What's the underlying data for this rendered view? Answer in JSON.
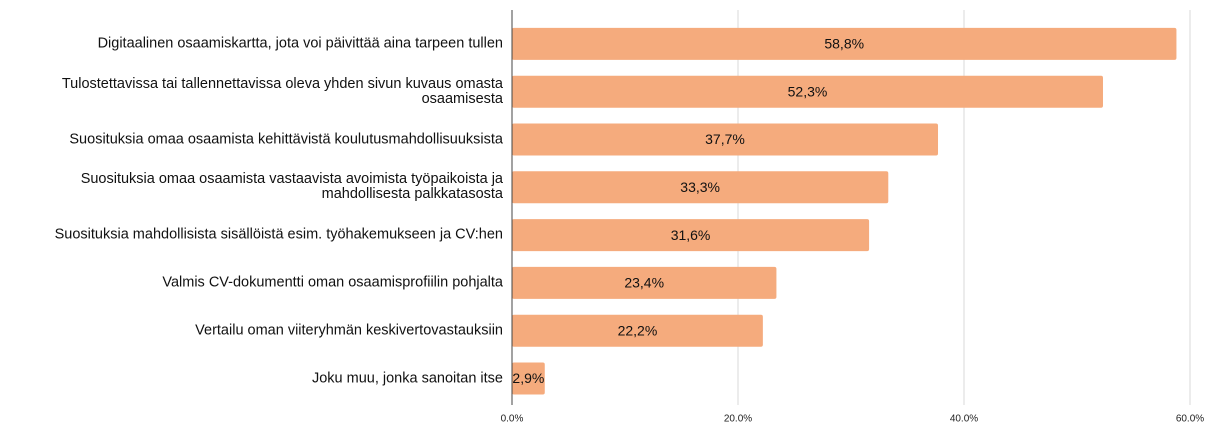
{
  "chart_data": {
    "type": "bar",
    "orientation": "horizontal",
    "categories": [
      "Digitaalinen osaamiskartta, jota voi päivittää aina tarpeen tullen",
      "Tulostettavissa tai tallennettavissa oleva yhden sivun kuvaus omasta osaamisesta",
      "Suosituksia omaa osaamista kehittävistä koulutusmahdollisuuksista",
      "Suosituksia omaa osaamista vastaavista avoimista työpaikoista ja mahdollisesta palkkatasosta",
      "Suosituksia mahdollisista sisällöistä esim. työhakemukseen ja CV:hen",
      "Valmis CV-dokumentti oman osaamisprofiilin pohjalta",
      "Vertailu oman viiteryhmän keskivertovastauksiin",
      "Joku muu, jonka sanoitan itse"
    ],
    "values": [
      58.8,
      52.3,
      37.7,
      33.3,
      31.6,
      23.4,
      22.2,
      2.9
    ],
    "value_labels": [
      "58,8%",
      "52,3%",
      "37,7%",
      "33,3%",
      "31,6%",
      "23,4%",
      "22,2%",
      "2,9%"
    ],
    "color": "#f5ab7d",
    "xlim": [
      0,
      60
    ],
    "xticks": [
      {
        "value": 0,
        "label": "0.0%"
      },
      {
        "value": 20,
        "label": "20.0%"
      },
      {
        "value": 40,
        "label": "40.0%"
      },
      {
        "value": 60,
        "label": "60.0%"
      }
    ],
    "grid": true
  }
}
